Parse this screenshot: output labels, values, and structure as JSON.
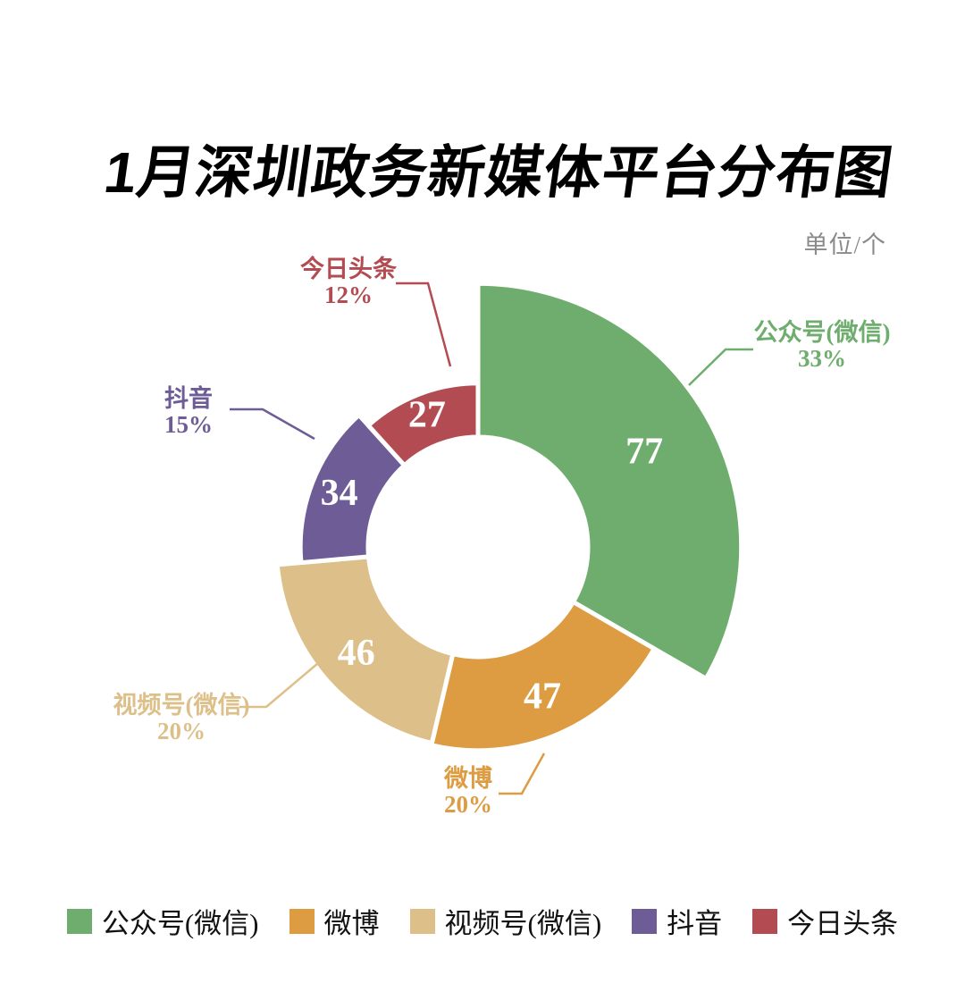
{
  "title": "1月深圳政务新媒体平台分布图",
  "unit_label": "单位/个",
  "chart_data": {
    "type": "pie",
    "variant": "variable-radius-donut",
    "title": "1月深圳政务新媒体平台分布图",
    "unit": "单位/个",
    "legend_position": "bottom",
    "series": [
      {
        "name": "公众号(微信)",
        "value": 77,
        "percent": "33%",
        "color": "#6ead6d"
      },
      {
        "name": "微博",
        "value": 47,
        "percent": "20%",
        "color": "#dd9c41"
      },
      {
        "name": "视频号(微信)",
        "value": 46,
        "percent": "20%",
        "color": "#ddc089"
      },
      {
        "name": "抖音",
        "value": 34,
        "percent": "15%",
        "color": "#6e5c96"
      },
      {
        "name": "今日头条",
        "value": 27,
        "percent": "12%",
        "color": "#b34c52"
      }
    ],
    "legend": [
      "公众号(微信)",
      "微博",
      "视频号(微信)",
      "抖音",
      "今日头条"
    ]
  }
}
